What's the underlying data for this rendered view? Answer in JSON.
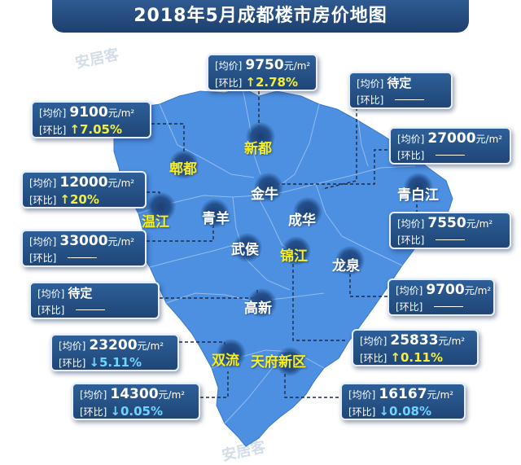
{
  "title": "2018年5月成都楼市房价地图",
  "watermark": "安居客",
  "labels": {
    "price": "[均价]",
    "change": "[环比]",
    "unit": "元/m²"
  },
  "colors": {
    "map_fill": "#4d8fe0",
    "card_bg": "#244f84",
    "up_color": "#f5ef3a",
    "down_color": "#6fd4ff"
  },
  "districts": {
    "pixian": "郫都",
    "xindu": "新都",
    "jinniu": "金牛",
    "wenjiang": "温江",
    "qingyang": "青羊",
    "chenghua": "成华",
    "qingbaijiang": "青白江",
    "wuhou": "武侯",
    "jinjiang": "锦江",
    "longquan": "龙泉",
    "gaoxin": "高新",
    "shuangliu": "双流",
    "tianfu": "天府新区"
  },
  "cards": {
    "xindu": {
      "price": "9750",
      "change": "2.78%",
      "arrow": "↑"
    },
    "pending_top": {
      "price": "待定"
    },
    "pixian": {
      "price": "9100",
      "change": "7.05%",
      "arrow": "↑"
    },
    "jinniu": {
      "price": "27000"
    },
    "wenjiang": {
      "price": "12000",
      "change": "20%",
      "arrow": "↑"
    },
    "qingbaijiang": {
      "price": "7550"
    },
    "qingyang": {
      "price": "33000"
    },
    "longquan": {
      "price": "9700"
    },
    "pending_gaoxin": {
      "price": "待定"
    },
    "jinjiang": {
      "price": "25833",
      "change": "0.11%",
      "arrow": "↑"
    },
    "shuangliu": {
      "price": "23200",
      "change": "5.11%",
      "arrow": "↓"
    },
    "tianfu": {
      "price": "16167",
      "change": "0.08%",
      "arrow": "↓"
    },
    "gaoxin": {
      "price": "14300",
      "change": "0.05%",
      "arrow": "↓"
    }
  }
}
